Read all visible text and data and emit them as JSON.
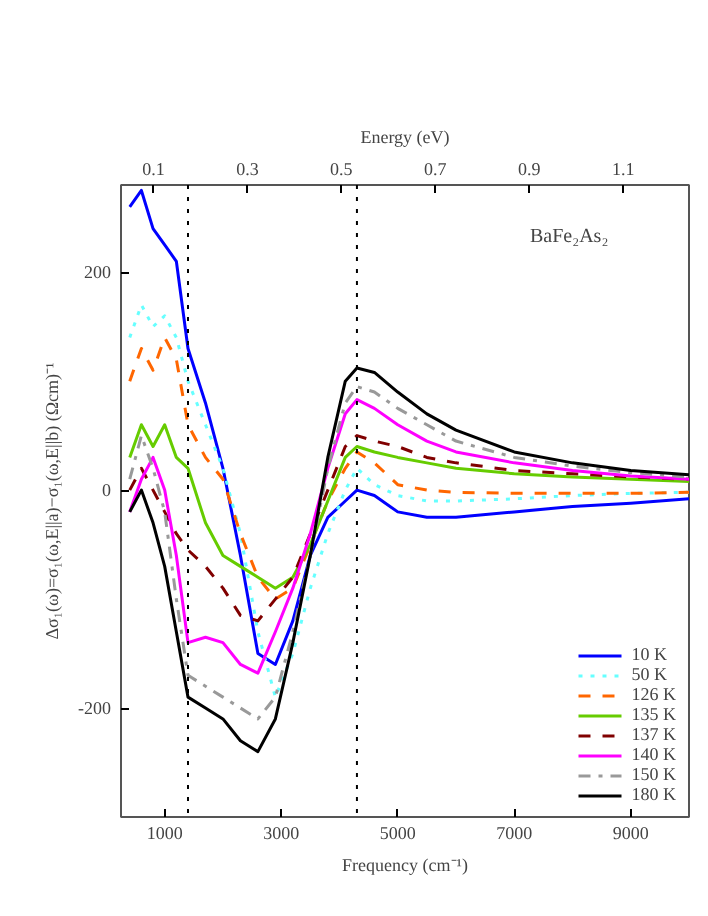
{
  "chart_data": {
    "type": "line",
    "xlabel": "Frequency (cm⁻¹)",
    "ylabel": "Δσ₁(ω)=σ₁(ω,E||a)−σ₁(ω,E||b) (Ωcm)⁻¹",
    "x2label": "Energy (eV)",
    "annotations": [
      "BaFe₂As₂"
    ],
    "x": [
      400,
      600,
      800,
      1000,
      1200,
      1400,
      1700,
      2000,
      2300,
      2600,
      2900,
      3200,
      3500,
      3800,
      4100,
      4300,
      4600,
      5000,
      5500,
      6000,
      7000,
      8000,
      9000,
      10000
    ],
    "series": [
      {
        "name": "10 K",
        "color": "#0000ff",
        "line_style": "solid",
        "values": [
          260,
          275,
          240,
          225,
          210,
          130,
          80,
          20,
          -60,
          -150,
          -160,
          -120,
          -60,
          -25,
          -10,
          0,
          -5,
          -20,
          -25,
          -25,
          -20,
          -15,
          -12,
          -8
        ]
      },
      {
        "name": "50 K",
        "color": "#66ffff",
        "line_style": "dotted",
        "values": [
          140,
          170,
          150,
          160,
          140,
          100,
          60,
          20,
          -40,
          -130,
          -190,
          -150,
          -90,
          -40,
          0,
          20,
          5,
          -5,
          -10,
          -10,
          -8,
          -5,
          -3,
          -2
        ]
      },
      {
        "name": "126 K",
        "color": "#ff6600",
        "line_style": "dashed",
        "values": [
          100,
          130,
          110,
          140,
          120,
          60,
          30,
          10,
          -40,
          -80,
          -100,
          -90,
          -50,
          -10,
          20,
          35,
          25,
          5,
          0,
          -2,
          -3,
          -3,
          -3,
          -2
        ]
      },
      {
        "name": "135 K",
        "color": "#66cc00",
        "line_style": "solid",
        "values": [
          30,
          60,
          40,
          60,
          30,
          20,
          -30,
          -60,
          -70,
          -80,
          -90,
          -80,
          -50,
          -10,
          30,
          40,
          35,
          30,
          25,
          20,
          15,
          12,
          10,
          8
        ]
      },
      {
        "name": "137 K",
        "color": "#800000",
        "line_style": "dashed",
        "values": [
          0,
          20,
          0,
          -20,
          -40,
          -55,
          -70,
          -90,
          -115,
          -120,
          -100,
          -80,
          -40,
          0,
          40,
          50,
          45,
          40,
          30,
          25,
          18,
          15,
          12,
          10
        ]
      },
      {
        "name": "140 K",
        "color": "#ff00ff",
        "line_style": "solid",
        "values": [
          -20,
          10,
          30,
          0,
          -60,
          -140,
          -135,
          -140,
          -160,
          -168,
          -130,
          -90,
          -40,
          20,
          70,
          83,
          75,
          60,
          45,
          35,
          25,
          18,
          13,
          10
        ]
      },
      {
        "name": "150 K",
        "color": "#999999",
        "line_style": "dashdot",
        "values": [
          10,
          50,
          20,
          -20,
          -100,
          -170,
          -180,
          -190,
          -200,
          -210,
          -190,
          -130,
          -60,
          20,
          80,
          95,
          90,
          75,
          60,
          45,
          30,
          22,
          16,
          12
        ]
      },
      {
        "name": "180 K",
        "color": "#000000",
        "line_style": "solid",
        "values": [
          -20,
          0,
          -30,
          -70,
          -130,
          -190,
          -200,
          -210,
          -230,
          -240,
          -210,
          -140,
          -60,
          30,
          100,
          112,
          108,
          90,
          70,
          55,
          35,
          25,
          18,
          14
        ]
      }
    ],
    "xlim": [
      250,
      10000
    ],
    "ylim": [
      -300,
      280
    ],
    "xticks": [
      1000,
      3000,
      5000,
      7000,
      9000
    ],
    "yticks": [
      -200,
      0,
      200
    ],
    "x2lim": [
      0.031,
      1.24
    ],
    "x2ticks": [
      0.1,
      0.3,
      0.5,
      0.7,
      0.9,
      1.1
    ],
    "ref_lines": [
      {
        "axis": "x",
        "value": 1400,
        "line_style": "dotted",
        "color": "#000000"
      },
      {
        "axis": "x",
        "value": 4300,
        "line_style": "dotted",
        "color": "#000000"
      }
    ],
    "grid": false,
    "legend": "bottom right",
    "marker": "none"
  }
}
